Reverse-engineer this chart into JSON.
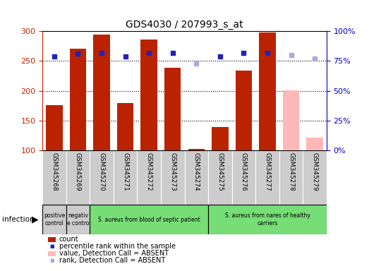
{
  "title": "GDS4030 / 207993_s_at",
  "samples": [
    "GSM345268",
    "GSM345269",
    "GSM345270",
    "GSM345271",
    "GSM345272",
    "GSM345273",
    "GSM345274",
    "GSM345275",
    "GSM345276",
    "GSM345277",
    "GSM345278",
    "GSM345279"
  ],
  "count_values": [
    176,
    271,
    294,
    179,
    286,
    239,
    102,
    139,
    234,
    298,
    null,
    null
  ],
  "count_absent": [
    null,
    null,
    null,
    null,
    null,
    null,
    null,
    null,
    null,
    null,
    201,
    122
  ],
  "rank_values": [
    79,
    81,
    82,
    79,
    82,
    82,
    null,
    79,
    82,
    82,
    null,
    null
  ],
  "rank_absent": [
    null,
    null,
    null,
    null,
    null,
    null,
    73,
    null,
    null,
    null,
    80,
    77
  ],
  "ylim_left": [
    100,
    300
  ],
  "ylim_right": [
    0,
    100
  ],
  "left_ticks": [
    100,
    150,
    200,
    250,
    300
  ],
  "right_ticks": [
    0,
    25,
    50,
    75,
    100
  ],
  "bar_color_present": "#bb2200",
  "bar_color_absent": "#ffb8b8",
  "rank_color_present": "#2222bb",
  "rank_color_absent": "#aaaadd",
  "groups": [
    {
      "label": "positive\ncontrol",
      "start": 0,
      "end": 1,
      "color": "#cccccc"
    },
    {
      "label": "negativ\ne contro",
      "start": 1,
      "end": 2,
      "color": "#cccccc"
    },
    {
      "label": "S. aureus from blood of septic patient",
      "start": 2,
      "end": 7,
      "color": "#77dd77"
    },
    {
      "label": "S. aureus from nares of healthy\ncarriers",
      "start": 7,
      "end": 12,
      "color": "#77dd77"
    }
  ],
  "sample_bg_color": "#cccccc",
  "infection_label": "infection",
  "tick_label_color_left": "#cc2200",
  "tick_label_color_right": "#0000cc"
}
